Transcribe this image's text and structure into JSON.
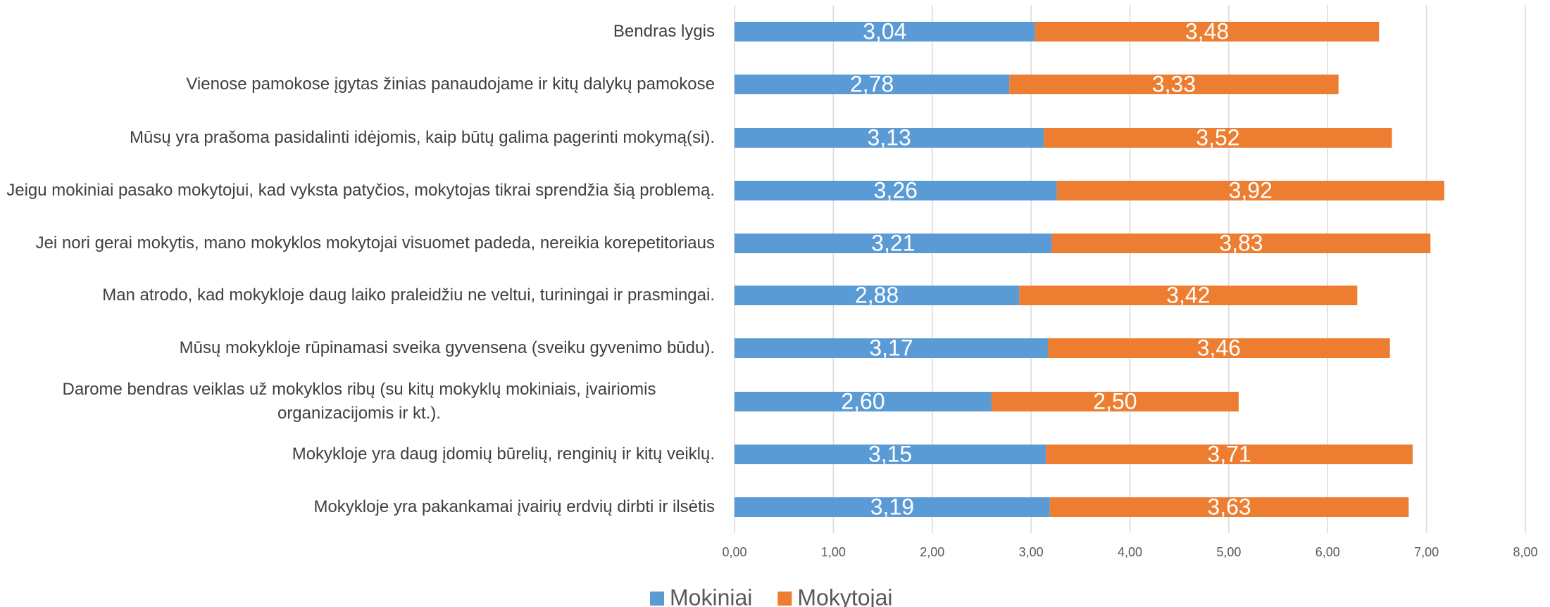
{
  "chart_data": {
    "type": "stacked_bar_horizontal",
    "categories": [
      "Bendras lygis",
      "Vienose pamokose įgytas žinias panaudojame ir kitų dalykų pamokose",
      "Mūsų yra prašoma pasidalinti idėjomis, kaip būtų galima pagerinti mokymą(si).",
      "Jeigu mokiniai pasako mokytojui, kad vyksta patyčios, mokytojas tikrai sprendžia šią problemą.",
      "Jei nori gerai mokytis, mano mokyklos mokytojai visuomet padeda, nereikia korepetitoriaus",
      "Man atrodo, kad mokykloje daug laiko praleidžiu ne veltui, turiningai ir prasmingai.",
      "Mūsų mokykloje rūpinamasi sveika gyvensena (sveiku gyvenimo būdu).",
      "Darome bendras veiklas už mokyklos ribų (su kitų mokyklų mokiniais, įvairiomis organizacijomis ir kt.).",
      "Mokykloje yra daug įdomių būrelių, renginių ir kitų veiklų.",
      "Mokykloje yra pakankamai įvairių erdvių dirbti ir ilsėtis"
    ],
    "series": [
      {
        "name": "Mokiniai",
        "color": "#5b9bd5",
        "values": [
          3.04,
          2.78,
          3.13,
          3.26,
          3.21,
          2.88,
          3.17,
          2.6,
          3.15,
          3.19
        ],
        "value_labels": [
          "3,04",
          "2,78",
          "3,13",
          "3,26",
          "3,21",
          "2,88",
          "3,17",
          "2,60",
          "3,15",
          "3,19"
        ]
      },
      {
        "name": "Mokytojai",
        "color": "#ed7d31",
        "values": [
          3.48,
          3.33,
          3.52,
          3.92,
          3.83,
          3.42,
          3.46,
          2.5,
          3.71,
          3.63
        ],
        "value_labels": [
          "3,48",
          "3,33",
          "3,52",
          "3,92",
          "3,83",
          "3,42",
          "3,46",
          "2,50",
          "3,71",
          "3,63"
        ]
      }
    ],
    "xlim": [
      0,
      8
    ],
    "xticks": [
      {
        "value": 0,
        "label": "0,00"
      },
      {
        "value": 1,
        "label": "1,00"
      },
      {
        "value": 2,
        "label": "2,00"
      },
      {
        "value": 3,
        "label": "3,00"
      },
      {
        "value": 4,
        "label": "4,00"
      },
      {
        "value": 5,
        "label": "5,00"
      },
      {
        "value": 6,
        "label": "6,00"
      },
      {
        "value": 7,
        "label": "7,00"
      },
      {
        "value": 8,
        "label": "8,00"
      }
    ],
    "grid": true,
    "legend": "bottom"
  }
}
